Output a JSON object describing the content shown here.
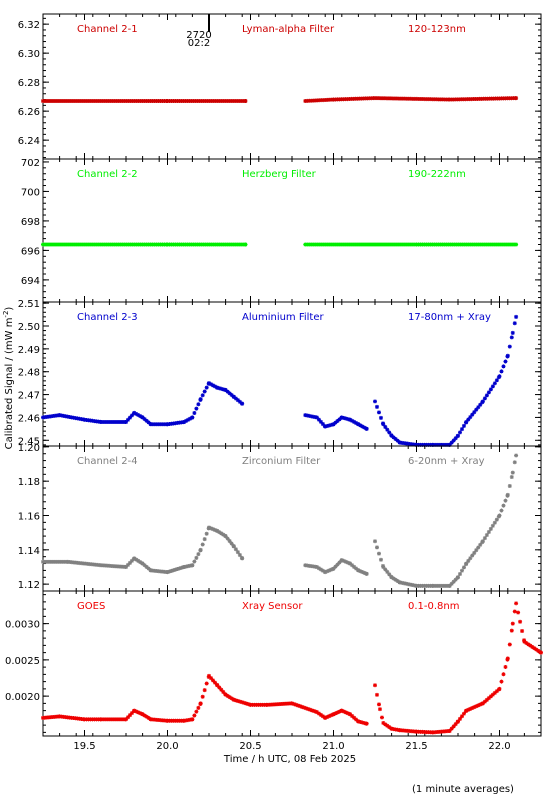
{
  "page": {
    "ylabel": "Calibrated Signal / (mW m",
    "ylabel_sup": "-2",
    "ylabel_end": ")",
    "xlabel": "Time / h UTC, 08 Feb 2025",
    "footnote": "(1 minute averages)",
    "marker_label_top": "2720",
    "marker_label_bottom": "02:2",
    "marker_x": 20.25
  },
  "chart_data": [
    {
      "type": "scatter",
      "panel": "channel-2-1",
      "labels": [
        "Channel 2-1",
        "Lyman-alpha Filter",
        "120-123nm"
      ],
      "color": "#cc0000",
      "xlim": [
        19.25,
        22.25
      ],
      "ylim": [
        6.227,
        6.327
      ],
      "yticks": [
        6.24,
        6.26,
        6.28,
        6.3,
        6.32
      ],
      "ytick_labels": [
        "6.24",
        "6.26",
        "6.28",
        "6.30",
        "6.32"
      ],
      "segments": [
        {
          "x": [
            19.25,
            20.0,
            20.47
          ],
          "y": [
            6.267,
            6.267,
            6.267
          ]
        },
        {
          "x": [
            20.83,
            21.0,
            21.25,
            21.7,
            22.1
          ],
          "y": [
            6.267,
            6.268,
            6.269,
            6.268,
            6.269
          ]
        }
      ]
    },
    {
      "type": "scatter",
      "panel": "channel-2-2",
      "labels": [
        "Channel 2-2",
        "Herzberg Filter",
        "190-222nm"
      ],
      "color": "#00ee00",
      "xlim": [
        19.25,
        22.25
      ],
      "ylim": [
        692.5,
        702.2
      ],
      "yticks": [
        694,
        696,
        698,
        700,
        702
      ],
      "ytick_labels": [
        "694",
        "696",
        "698",
        "700",
        "702"
      ],
      "segments": [
        {
          "x": [
            19.25,
            20.0,
            20.47
          ],
          "y": [
            696.4,
            696.4,
            696.4
          ]
        },
        {
          "x": [
            20.83,
            21.5,
            22.1
          ],
          "y": [
            696.4,
            696.4,
            696.4
          ]
        }
      ]
    },
    {
      "type": "scatter",
      "panel": "channel-2-3",
      "labels": [
        "Channel 2-3",
        "Aluminium Filter",
        "17-80nm + Xray"
      ],
      "color": "#0000cc",
      "xlim": [
        19.25,
        22.25
      ],
      "ylim": [
        2.4475,
        2.5105
      ],
      "yticks": [
        2.45,
        2.46,
        2.47,
        2.48,
        2.49,
        2.5,
        2.51
      ],
      "ytick_labels": [
        "2.45",
        "2.46",
        "2.47",
        "2.48",
        "2.49",
        "2.50",
        "2.51"
      ],
      "segments": [
        {
          "x": [
            19.25,
            19.35,
            19.5,
            19.6,
            19.75,
            19.8,
            19.85,
            19.9,
            20.0,
            20.1,
            20.15,
            20.2,
            20.25,
            20.3,
            20.35,
            20.4,
            20.45
          ],
          "y": [
            2.46,
            2.461,
            2.459,
            2.458,
            2.458,
            2.462,
            2.46,
            2.457,
            2.457,
            2.458,
            2.46,
            2.468,
            2.475,
            2.473,
            2.472,
            2.469,
            2.466
          ]
        },
        {
          "x": [
            20.83,
            20.9,
            20.95,
            21.0,
            21.05,
            21.1,
            21.15,
            21.2
          ],
          "y": [
            2.461,
            2.46,
            2.456,
            2.457,
            2.46,
            2.459,
            2.457,
            2.455
          ]
        },
        {
          "x": [
            21.25,
            21.3,
            21.35,
            21.4,
            21.5,
            21.6,
            21.7,
            21.75,
            21.8,
            21.9,
            22.0,
            22.05,
            22.08,
            22.1
          ],
          "y": [
            2.467,
            2.457,
            2.452,
            2.449,
            2.448,
            2.448,
            2.448,
            2.452,
            2.458,
            2.467,
            2.478,
            2.487,
            2.497,
            2.504
          ]
        }
      ]
    },
    {
      "type": "scatter",
      "panel": "channel-2-4",
      "labels": [
        "Channel 2-4",
        "Zirconium Filter",
        "6-20nm + Xray"
      ],
      "color": "#808080",
      "xlim": [
        19.25,
        22.25
      ],
      "ylim": [
        1.116,
        1.2005
      ],
      "yticks": [
        1.12,
        1.14,
        1.16,
        1.18,
        1.2
      ],
      "ytick_labels": [
        "1.12",
        "1.14",
        "1.16",
        "1.18",
        "1.20"
      ],
      "segments": [
        {
          "x": [
            19.25,
            19.4,
            19.6,
            19.75,
            19.8,
            19.85,
            19.9,
            20.0,
            20.1,
            20.15,
            20.2,
            20.25,
            20.3,
            20.35,
            20.4,
            20.45
          ],
          "y": [
            1.133,
            1.133,
            1.131,
            1.13,
            1.135,
            1.132,
            1.128,
            1.127,
            1.13,
            1.131,
            1.14,
            1.153,
            1.151,
            1.148,
            1.142,
            1.135
          ]
        },
        {
          "x": [
            20.83,
            20.9,
            20.95,
            21.0,
            21.05,
            21.1,
            21.15,
            21.2
          ],
          "y": [
            1.131,
            1.13,
            1.127,
            1.129,
            1.134,
            1.132,
            1.128,
            1.126
          ]
        },
        {
          "x": [
            21.25,
            21.3,
            21.35,
            21.4,
            21.5,
            21.6,
            21.7,
            21.75,
            21.8,
            21.9,
            22.0,
            22.05,
            22.08,
            22.1
          ],
          "y": [
            1.145,
            1.13,
            1.124,
            1.121,
            1.119,
            1.119,
            1.119,
            1.124,
            1.132,
            1.145,
            1.16,
            1.172,
            1.185,
            1.195
          ]
        }
      ]
    },
    {
      "type": "scatter",
      "panel": "goes",
      "labels": [
        "GOES",
        "Xray Sensor",
        "0.1-0.8nm"
      ],
      "color": "#ee0000",
      "xlim": [
        19.25,
        22.25
      ],
      "ylim": [
        0.00145,
        0.00345
      ],
      "yticks": [
        0.002,
        0.0025,
        0.003
      ],
      "ytick_labels": [
        "0.0020",
        "0.0025",
        "0.0030"
      ],
      "segments": [
        {
          "x": [
            19.25,
            19.35,
            19.5,
            19.6,
            19.75,
            19.8,
            19.85,
            19.9,
            20.0,
            20.1,
            20.15,
            20.2,
            20.25,
            20.3,
            20.35,
            20.4,
            20.5,
            20.6,
            20.75,
            20.9,
            20.95,
            21.0,
            21.05,
            21.1,
            21.15,
            21.2
          ],
          "y": [
            0.0017,
            0.00172,
            0.00168,
            0.00168,
            0.00168,
            0.0018,
            0.00175,
            0.00168,
            0.00166,
            0.00166,
            0.00168,
            0.0019,
            0.00228,
            0.00215,
            0.00202,
            0.00195,
            0.00188,
            0.00188,
            0.0019,
            0.00178,
            0.0017,
            0.00175,
            0.0018,
            0.00175,
            0.00165,
            0.00162
          ]
        },
        {
          "x": [
            21.25,
            21.28,
            21.3,
            21.35,
            21.4,
            21.5,
            21.6,
            21.7,
            21.75,
            21.8,
            21.9,
            22.0,
            22.05,
            22.08,
            22.1,
            22.15,
            22.25
          ],
          "y": [
            0.00215,
            0.00182,
            0.00163,
            0.00155,
            0.00153,
            0.00151,
            0.0015,
            0.00152,
            0.00165,
            0.0018,
            0.0019,
            0.0021,
            0.00252,
            0.003,
            0.00328,
            0.00275,
            0.0026
          ]
        }
      ]
    }
  ],
  "xaxis": {
    "xlim": [
      19.25,
      22.25
    ],
    "ticks": [
      19.5,
      20.0,
      20.5,
      21.0,
      21.5,
      22.0
    ],
    "tick_labels": [
      "19.5",
      "20.0",
      "20.5",
      "21.0",
      "21.5",
      "22.0"
    ]
  }
}
